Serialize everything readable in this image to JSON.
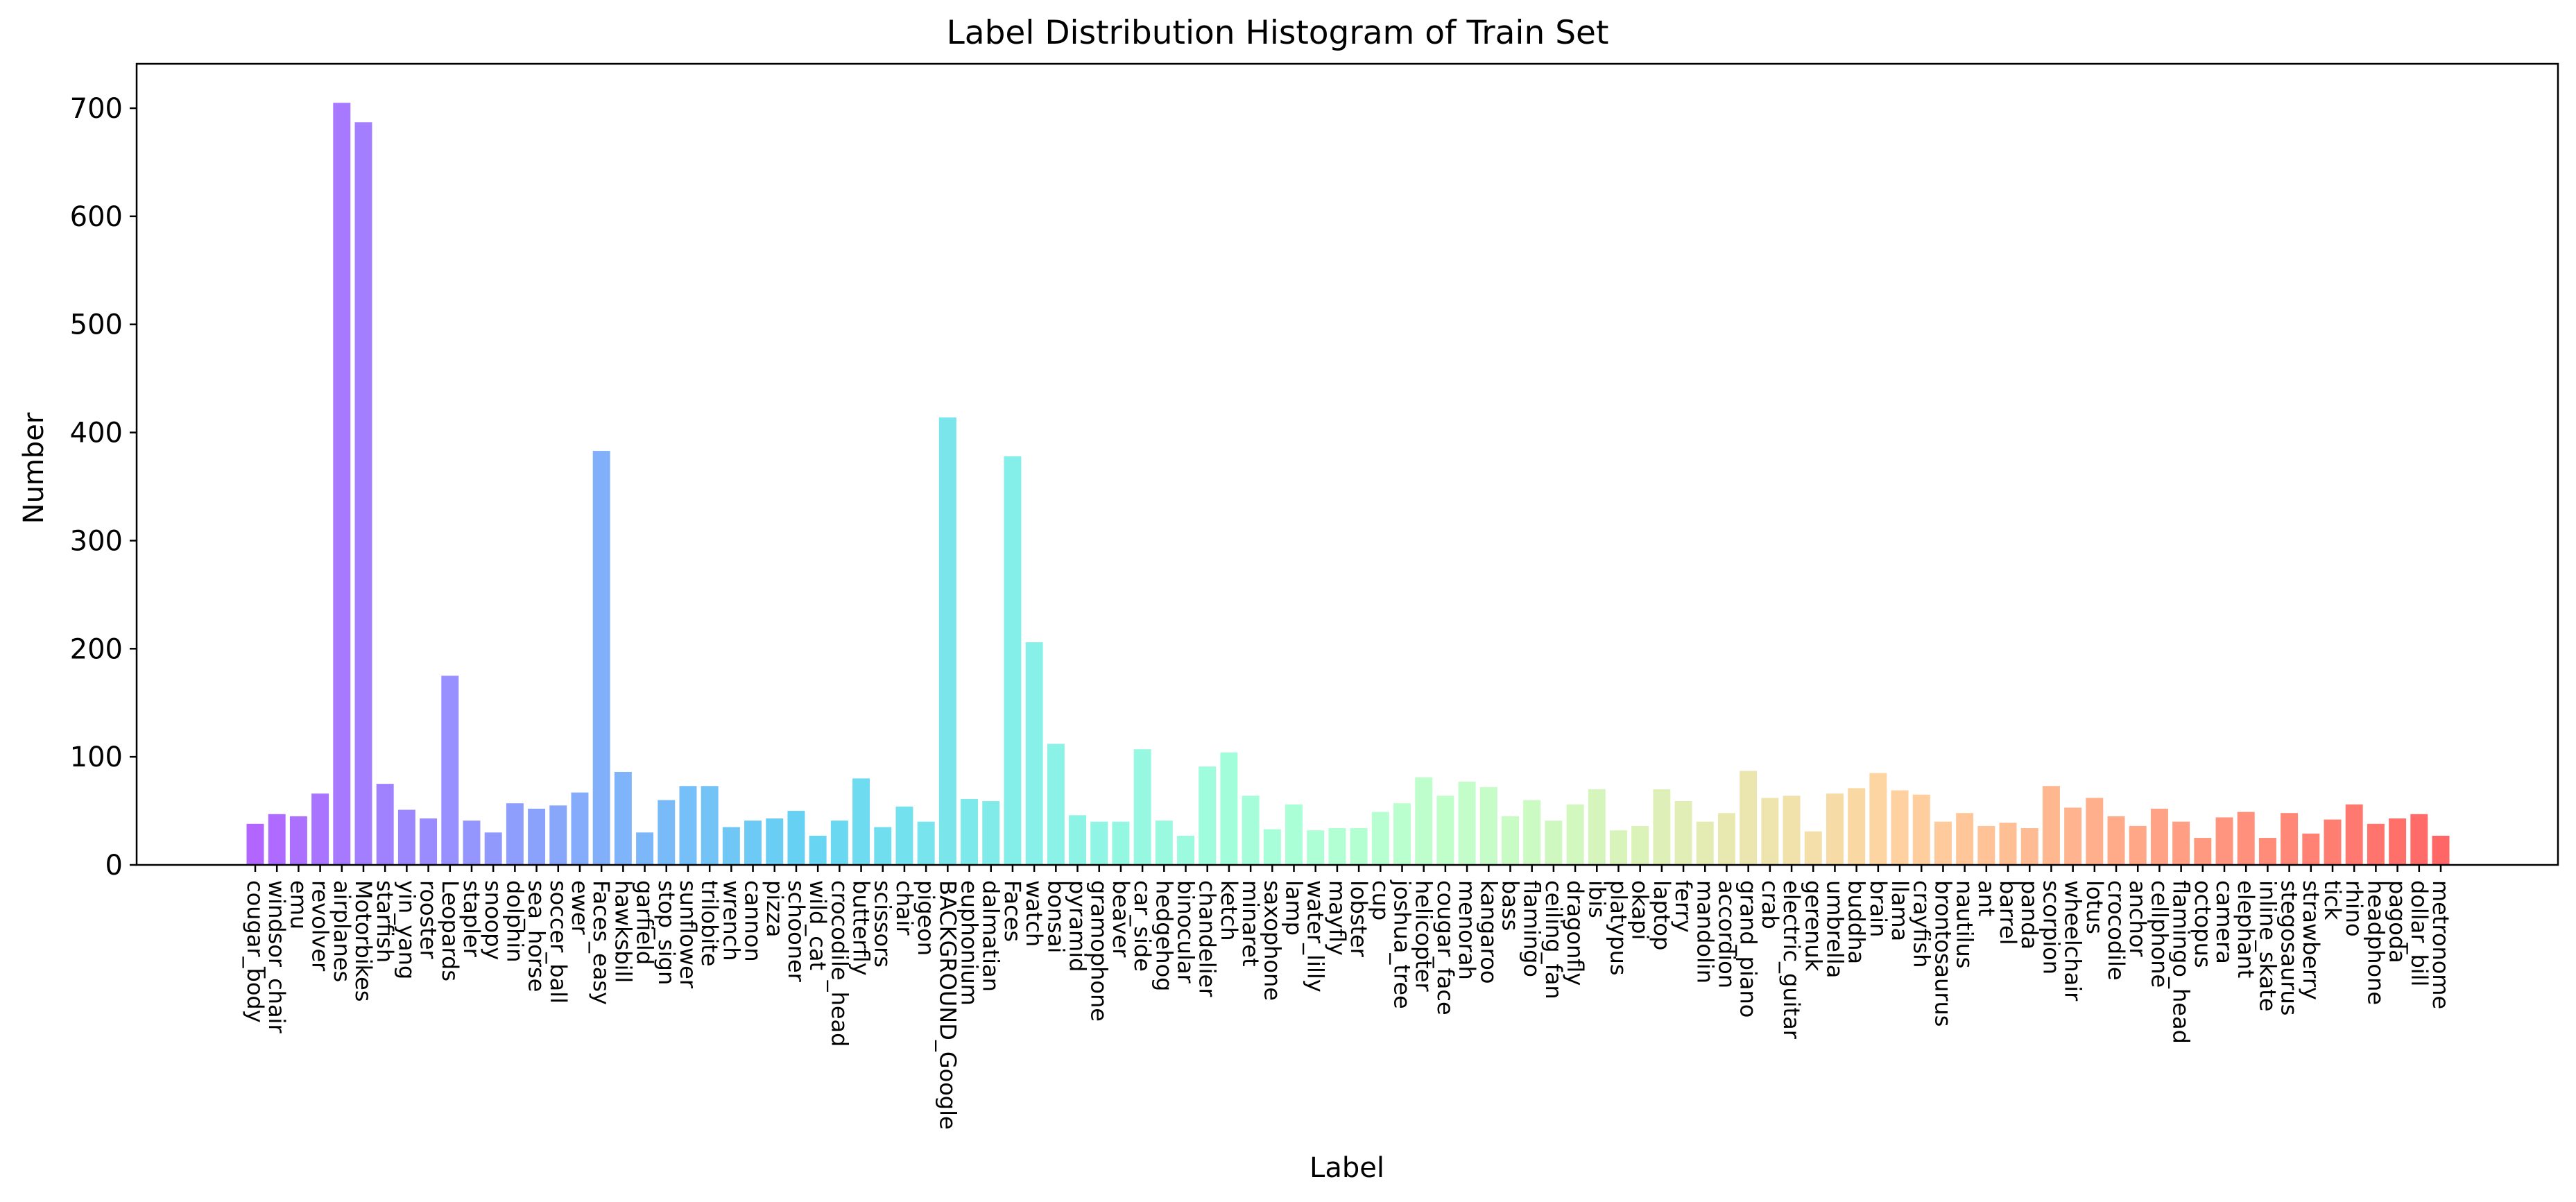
{
  "chart_data": {
    "type": "bar",
    "title": "Label Distribution Histogram of Train Set",
    "xlabel": "Label",
    "ylabel": "Number",
    "ylim": [
      0,
      740
    ],
    "yticks": [
      0,
      100,
      200,
      300,
      400,
      500,
      600,
      700
    ],
    "grid": false,
    "color_scheme": "rainbow (purple → blue → cyan → green → yellow → orange → red), semi-transparent",
    "categories": [
      "cougar_body",
      "windsor_chair",
      "emu",
      "revolver",
      "airplanes",
      "Motorbikes",
      "starfish",
      "yin_yang",
      "rooster",
      "Leopards",
      "stapler",
      "snoopy",
      "dolphin",
      "sea_horse",
      "soccer_ball",
      "ewer",
      "Faces_easy",
      "hawksbill",
      "garfield",
      "stop_sign",
      "sunflower",
      "trilobite",
      "wrench",
      "cannon",
      "pizza",
      "schooner",
      "wild_cat",
      "crocodile_head",
      "butterfly",
      "scissors",
      "chair",
      "pigeon",
      "BACKGROUND_Google",
      "euphonium",
      "dalmatian",
      "Faces",
      "watch",
      "bonsai",
      "pyramid",
      "gramophone",
      "beaver",
      "car_side",
      "hedgehog",
      "binocular",
      "chandelier",
      "ketch",
      "minaret",
      "saxophone",
      "lamp",
      "water_lilly",
      "mayfly",
      "lobster",
      "cup",
      "joshua_tree",
      "helicopter",
      "cougar_face",
      "menorah",
      "kangaroo",
      "bass",
      "flamingo",
      "ceiling_fan",
      "dragonfly",
      "ibis",
      "platypus",
      "okapi",
      "laptop",
      "ferry",
      "mandolin",
      "accordion",
      "grand_piano",
      "crab",
      "electric_guitar",
      "gerenuk",
      "umbrella",
      "buddha",
      "brain",
      "llama",
      "crayfish",
      "brontosaurus",
      "nautilus",
      "ant",
      "barrel",
      "panda",
      "scorpion",
      "wheelchair",
      "lotus",
      "crocodile",
      "anchor",
      "cellphone",
      "flamingo_head",
      "octopus",
      "camera",
      "elephant",
      "inline_skate",
      "stegosaurus",
      "strawberry",
      "tick",
      "rhino",
      "headphone",
      "pagoda",
      "dollar_bill",
      "metronome"
    ],
    "values": [
      38,
      47,
      45,
      66,
      705,
      687,
      75,
      51,
      43,
      175,
      41,
      30,
      57,
      52,
      55,
      67,
      383,
      86,
      30,
      60,
      73,
      73,
      35,
      41,
      43,
      50,
      27,
      41,
      80,
      35,
      54,
      40,
      414,
      61,
      59,
      378,
      206,
      112,
      46,
      40,
      40,
      107,
      41,
      27,
      91,
      104,
      64,
      33,
      56,
      32,
      34,
      34,
      49,
      57,
      81,
      64,
      77,
      72,
      45,
      60,
      41,
      56,
      70,
      32,
      36,
      70,
      59,
      40,
      48,
      87,
      62,
      64,
      31,
      66,
      71,
      85,
      69,
      65,
      40,
      48,
      36,
      39,
      34,
      73,
      53,
      62,
      45,
      36,
      52,
      40,
      25,
      44,
      49,
      25,
      48,
      29,
      42,
      56,
      38,
      43,
      47,
      27
    ]
  }
}
